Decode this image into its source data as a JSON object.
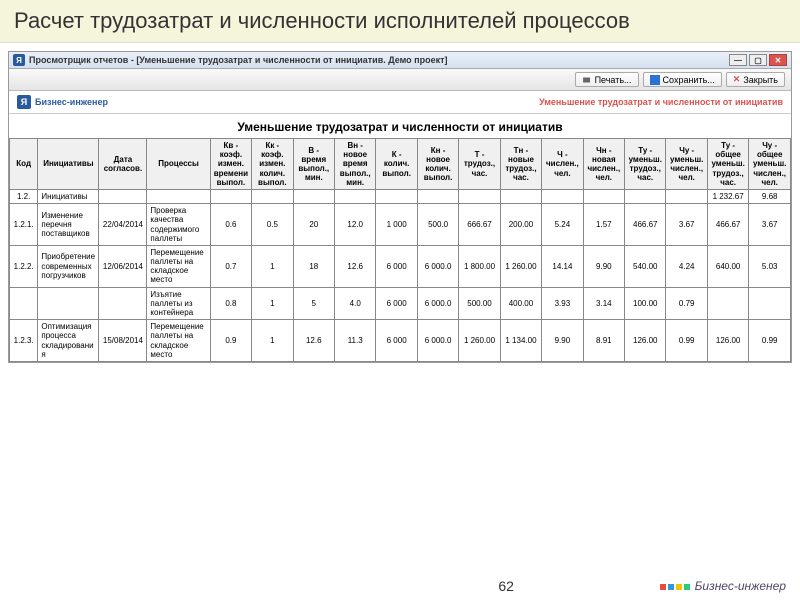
{
  "slide": {
    "title": "Расчет трудозатрат и численности исполнителей процессов",
    "page_number": "62"
  },
  "window": {
    "app_name": "Просмотрщик отчетов",
    "doc_title": "[Уменьшение трудозатрат и численности от инициатив. Демо проект]"
  },
  "toolbar": {
    "print": "Печать...",
    "save": "Сохранить...",
    "close": "Закрыть"
  },
  "report": {
    "brand": "Бизнес-инженер",
    "subtitle": "Уменьшение трудозатрат и численности от инициатив",
    "title": "Уменьшение трудозатрат и численности от инициатив"
  },
  "table": {
    "columns": [
      "Код",
      "Инициативы",
      "Дата согласов.",
      "Процессы",
      "Кв - коэф. измен. времени выпол.",
      "Кк - коэф. измен. колич. выпол.",
      "В - время выпол., мин.",
      "Вн - новое время выпол., мин.",
      "К - колич. выпол.",
      "Кн - новое колич. выпол.",
      "Т - трудоз., час.",
      "Тн - новые трудоз., час.",
      "Ч - числен., чел.",
      "Чн - новая числен., чел.",
      "Ту - уменьш. трудоз., час.",
      "Чу - уменьш. числен., чел.",
      "Ту - общее уменьш. трудоз., час.",
      "Чу - общее уменьш. числен., чел."
    ],
    "rows": [
      {
        "code": "1.2.",
        "init": "Инициативы",
        "date": "",
        "proc": "",
        "v": [
          "",
          "",
          "",
          "",
          "",
          "",
          "",
          "",
          "",
          "",
          "",
          "",
          "1 232.67",
          "9.68"
        ]
      },
      {
        "code": "1.2.1.",
        "init": "Изменение перечня поставщиков",
        "date": "22/04/2014",
        "proc": "Проверка качества содержимого паллеты",
        "v": [
          "0.6",
          "0.5",
          "20",
          "12.0",
          "1 000",
          "500.0",
          "666.67",
          "200.00",
          "5.24",
          "1.57",
          "466.67",
          "3.67",
          "466.67",
          "3.67"
        ]
      },
      {
        "code": "1.2.2.",
        "init": "Приобретение современных погрузчиков",
        "date": "12/06/2014",
        "proc": "Перемещение паллеты на складское место",
        "v": [
          "0.7",
          "1",
          "18",
          "12.6",
          "6 000",
          "6 000.0",
          "1 800.00",
          "1 260.00",
          "14.14",
          "9.90",
          "540.00",
          "4.24",
          "640.00",
          "5.03"
        ]
      },
      {
        "code": "",
        "init": "",
        "date": "",
        "proc": "Изъятие паллеты из контейнера",
        "v": [
          "0.8",
          "1",
          "5",
          "4.0",
          "6 000",
          "6 000.0",
          "500.00",
          "400.00",
          "3.93",
          "3.14",
          "100.00",
          "0.79",
          "",
          ""
        ]
      },
      {
        "code": "1.2.3.",
        "init": "Оптимизация процесса складирования",
        "date": "15/08/2014",
        "proc": "Перемещение паллеты на складское место",
        "v": [
          "0.9",
          "1",
          "12.6",
          "11.3",
          "6 000",
          "6 000.0",
          "1 260.00",
          "1 134.00",
          "9.90",
          "8.91",
          "126.00",
          "0.99",
          "126.00",
          "0.99"
        ]
      }
    ]
  },
  "footer_brand": "Бизнес-инженер"
}
